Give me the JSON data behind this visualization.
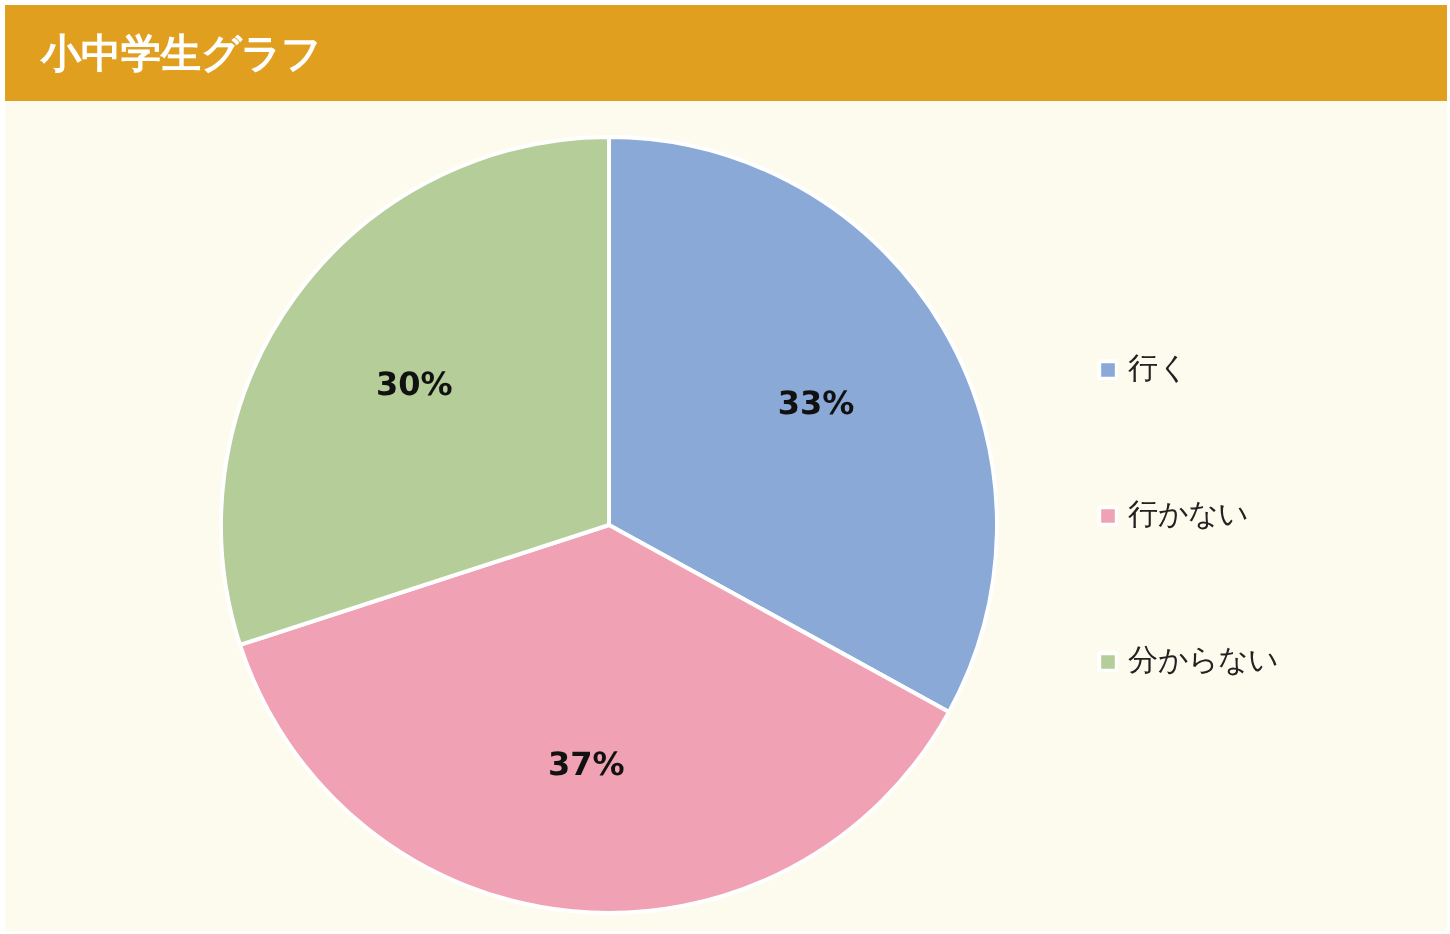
{
  "chart_data": {
    "type": "pie",
    "title": "小中学生グラフ",
    "categories": [
      "行く",
      "行かない",
      "分からない"
    ],
    "values": [
      33,
      37,
      30
    ],
    "colors": [
      "#8aa9d6",
      "#f0a1b4",
      "#b5cd99"
    ],
    "value_labels": [
      "33%",
      "37%",
      "30%"
    ],
    "legend": "right"
  }
}
